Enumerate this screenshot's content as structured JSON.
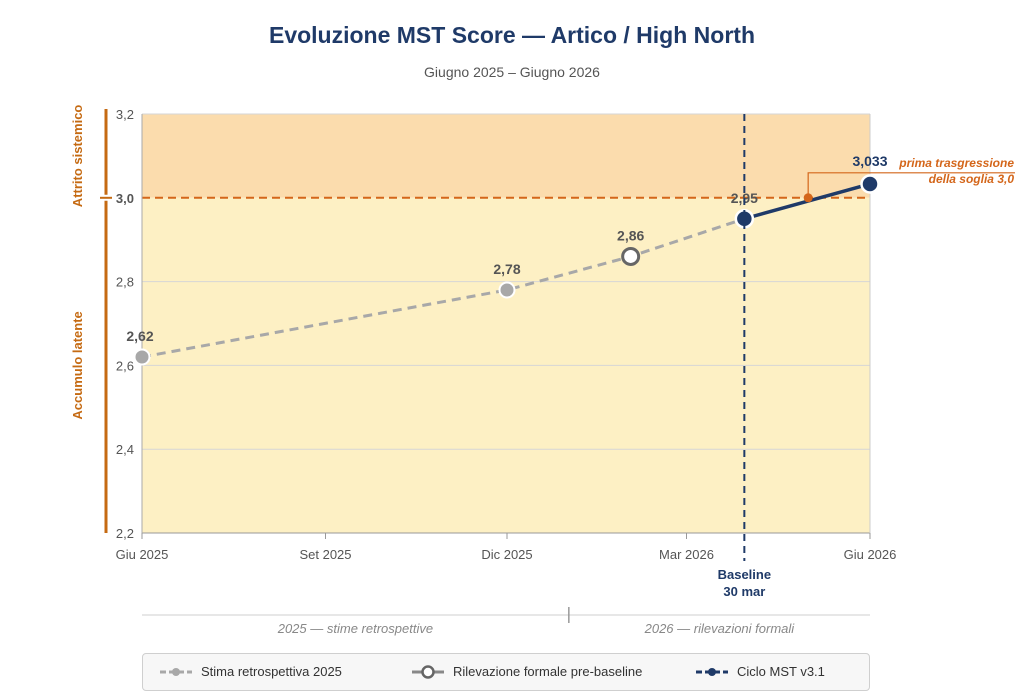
{
  "chart_data": {
    "type": "line",
    "title": "Evoluzione MST Score — Artico / High North",
    "subtitle": "Giugno 2025 – Giugno 2026",
    "x_axis": {
      "ticks": [
        "Giu 2025",
        "Set 2025",
        "Dic 2025",
        "Mar 2026",
        "Giu 2026"
      ],
      "range": [
        "2025-06",
        "2026-06"
      ]
    },
    "y_axis": {
      "ticks": [
        "2,2",
        "2,4",
        "2,6",
        "2,8",
        "3,0",
        "3,2"
      ],
      "threshold_label": "3,0",
      "ylim": [
        2.2,
        3.2
      ]
    },
    "threshold": 3.0,
    "zones": {
      "upper": "Attrito sistemico",
      "lower": "Accumulo latente"
    },
    "series": [
      {
        "name": "Stima retrospettiva 2025",
        "points": [
          {
            "x": "2025-06",
            "y": 2.62,
            "label": "2,62"
          },
          {
            "x": "2025-12",
            "y": 2.78,
            "label": "2,78"
          },
          {
            "x": "2026-02",
            "y": 2.86,
            "label": "2,86"
          },
          {
            "x": "2026-03-30",
            "y": 2.95,
            "label": "2,95"
          }
        ]
      },
      {
        "name": "Rilevazione formale pre-baseline",
        "points": [
          {
            "x": "2026-02",
            "y": 2.86
          }
        ]
      },
      {
        "name": "Ciclo MST v3.1",
        "points": [
          {
            "x": "2026-03-30",
            "y": 2.95
          },
          {
            "x": "2026-06",
            "y": 3.033,
            "label": "3,033"
          }
        ]
      }
    ],
    "crossing_point": {
      "x": "2026-05",
      "y": 3.0
    },
    "annotations": {
      "baseline_line1": "Baseline",
      "baseline_line2": "30 mar",
      "crossing_line1": "prima trasgressione",
      "crossing_line2": "della soglia 3,0"
    },
    "periods": {
      "left": "2025 — stime retrospettive",
      "right": "2026 — rilevazioni formali"
    },
    "colors": {
      "upper_zone": "#fbdcad",
      "lower_zone": "#fdf0c4",
      "threshold": "#d4661a",
      "zone_axis": "#c56a12",
      "retro": "#a8a8a8",
      "formal": "#888888",
      "mst": "#1f3a68"
    }
  },
  "legend": {
    "retro": "Stima retrospettiva 2025",
    "formal": "Rilevazione formale pre-baseline",
    "mst": "Ciclo MST v3.1"
  }
}
